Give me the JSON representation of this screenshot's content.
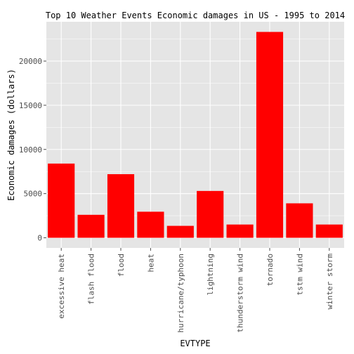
{
  "chart_data": {
    "type": "bar",
    "title": "Top 10 Weather Events Economic damages in US - 1995 to 2014",
    "xlabel": "EVTYPE",
    "ylabel": "Economic damages (dollars)",
    "categories": [
      "excessive heat",
      "flash flood",
      "flood",
      "heat",
      "hurricane/typhoon",
      "lightning",
      "thunderstorm wind",
      "tornado",
      "tstm wind",
      "winter storm"
    ],
    "values": [
      8400,
      2600,
      7200,
      2950,
      1350,
      5300,
      1500,
      23300,
      3900,
      1500
    ],
    "ylim": [
      -1150,
      24450
    ],
    "yticks": [
      0,
      5000,
      10000,
      15000,
      20000
    ],
    "ytick_labels": [
      "0",
      "5000",
      "10000",
      "15000",
      "20000"
    ],
    "bar_color": "#ff0000",
    "panel_background": "#e5e5e5",
    "grid_color": "#ffffff",
    "grid": true
  }
}
